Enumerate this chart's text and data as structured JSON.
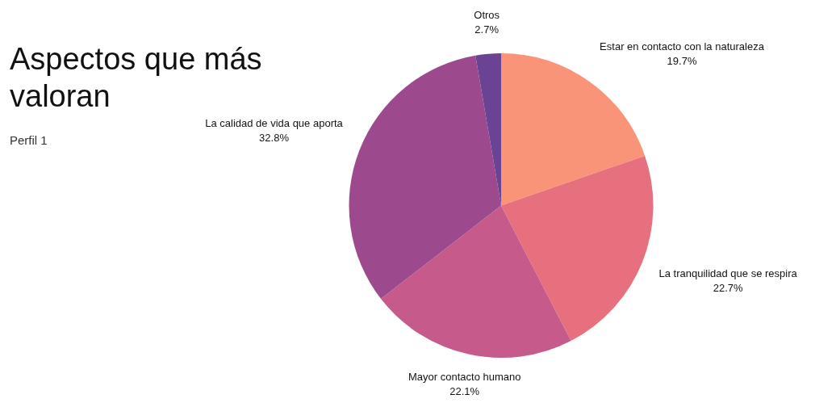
{
  "chart_data": {
    "type": "pie",
    "title": "Aspectos que más valoran",
    "subtitle": "Perfil 1",
    "categories": [
      "Estar en contacto con la naturaleza",
      "La tranquilidad que se respira",
      "Mayor contacto humano",
      "La calidad de vida que aporta",
      "Otros"
    ],
    "values": [
      19.7,
      22.7,
      22.1,
      32.8,
      2.7
    ],
    "value_labels": [
      "19.7%",
      "22.7%",
      "22.1%",
      "32.8%",
      "2.7%"
    ],
    "colors": [
      "#fa9479",
      "#e7707f",
      "#c65a8a",
      "#9c4a8d",
      "#6a4394"
    ],
    "legend": false
  }
}
